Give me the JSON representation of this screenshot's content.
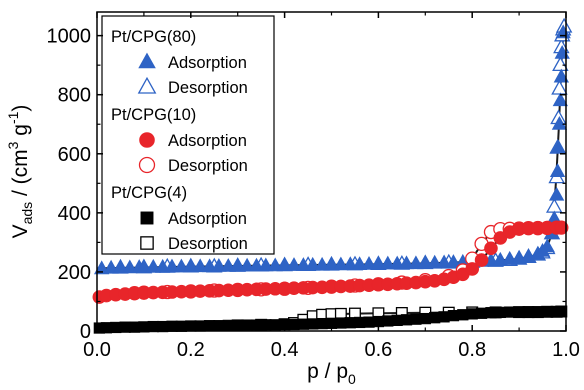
{
  "chart_data": {
    "type": "scatter",
    "xlabel": {
      "main": "p / p",
      "sub": "0"
    },
    "ylabel": {
      "pre": "V",
      "sub": "ads",
      "mid": " / (cm",
      "sup1": "3",
      "mid2": " g",
      "sup2": "-1",
      "post": ")"
    },
    "xlim": [
      0.0,
      1.0
    ],
    "ylim": [
      0,
      1080
    ],
    "xticks": [
      "0.0",
      "0.2",
      "0.4",
      "0.6",
      "0.8",
      "1.0"
    ],
    "yticks": [
      "0",
      "200",
      "400",
      "600",
      "800",
      "1000"
    ],
    "grid": false,
    "legend_position": "top-left",
    "groups": [
      {
        "title": "Pt/CPG(80)",
        "color": "#2e63c5",
        "marker": "triangle",
        "series": [
          {
            "name": "Adsorption",
            "filled": true,
            "x": [
              0.01,
              0.03,
              0.05,
              0.07,
              0.09,
              0.1,
              0.12,
              0.14,
              0.16,
              0.18,
              0.2,
              0.22,
              0.24,
              0.26,
              0.28,
              0.3,
              0.32,
              0.34,
              0.36,
              0.38,
              0.4,
              0.42,
              0.44,
              0.46,
              0.48,
              0.5,
              0.52,
              0.54,
              0.56,
              0.58,
              0.6,
              0.62,
              0.64,
              0.66,
              0.68,
              0.7,
              0.72,
              0.74,
              0.76,
              0.78,
              0.8,
              0.82,
              0.84,
              0.86,
              0.88,
              0.9,
              0.92,
              0.94,
              0.95,
              0.96,
              0.97,
              0.975,
              0.98,
              0.982,
              0.984,
              0.986,
              0.988,
              0.99,
              0.992,
              0.994
            ],
            "y": [
              211,
              213,
              214,
              214,
              215,
              215,
              216,
              216,
              217,
              217,
              218,
              218,
              218,
              219,
              219,
              220,
              220,
              220,
              221,
              221,
              222,
              222,
              222,
              223,
              223,
              224,
              224,
              225,
              225,
              226,
              226,
              227,
              227,
              228,
              228,
              229,
              230,
              231,
              232,
              233,
              234,
              236,
              238,
              240,
              243,
              247,
              252,
              260,
              270,
              285,
              330,
              380,
              460,
              540,
              620,
              700,
              780,
              860,
              940,
              1010
            ]
          },
          {
            "name": "Desorption",
            "filled": false,
            "x": [
              0.05,
              0.1,
              0.15,
              0.2,
              0.25,
              0.3,
              0.35,
              0.4,
              0.45,
              0.5,
              0.55,
              0.6,
              0.65,
              0.7,
              0.75,
              0.8,
              0.85,
              0.88,
              0.9,
              0.92,
              0.94,
              0.95,
              0.96,
              0.97,
              0.975,
              0.98,
              0.982,
              0.984,
              0.986,
              0.988,
              0.99,
              0.992,
              0.994,
              0.996
            ],
            "y": [
              214,
              215,
              217,
              218,
              218,
              220,
              221,
              222,
              223,
              224,
              225,
              226,
              227,
              229,
              231,
              234,
              237,
              240,
              244,
              250,
              258,
              265,
              280,
              330,
              420,
              520,
              620,
              720,
              820,
              900,
              960,
              1000,
              1020,
              1030
            ]
          }
        ]
      },
      {
        "title": "Pt/CPG(10)",
        "color": "#e8252a",
        "marker": "circle",
        "series": [
          {
            "name": "Adsorption",
            "filled": true,
            "x": [
              0.005,
              0.02,
              0.04,
              0.06,
              0.08,
              0.1,
              0.12,
              0.14,
              0.16,
              0.18,
              0.2,
              0.22,
              0.24,
              0.26,
              0.28,
              0.3,
              0.32,
              0.34,
              0.36,
              0.38,
              0.4,
              0.42,
              0.44,
              0.46,
              0.48,
              0.5,
              0.52,
              0.54,
              0.56,
              0.58,
              0.6,
              0.62,
              0.64,
              0.66,
              0.68,
              0.7,
              0.72,
              0.74,
              0.76,
              0.78,
              0.8,
              0.82,
              0.84,
              0.86,
              0.88,
              0.9,
              0.92,
              0.94,
              0.96,
              0.98,
              0.99
            ],
            "y": [
              115,
              120,
              123,
              125,
              127,
              129,
              130,
              131,
              132,
              133,
              134,
              135,
              136,
              137,
              138,
              139,
              140,
              141,
              142,
              143,
              144,
              145,
              146,
              147,
              148,
              150,
              151,
              152,
              154,
              155,
              157,
              158,
              160,
              162,
              164,
              167,
              170,
              175,
              182,
              192,
              210,
              240,
              280,
              315,
              335,
              345,
              348,
              350,
              350,
              350,
              350
            ]
          },
          {
            "name": "Desorption",
            "filled": false,
            "x": [
              0.08,
              0.1,
              0.15,
              0.2,
              0.25,
              0.3,
              0.35,
              0.4,
              0.45,
              0.5,
              0.55,
              0.6,
              0.65,
              0.7,
              0.75,
              0.78,
              0.8,
              0.82,
              0.84,
              0.86,
              0.88,
              0.9,
              0.92,
              0.94,
              0.96,
              0.98,
              0.99
            ],
            "y": [
              128,
              130,
              132,
              134,
              137,
              139,
              141,
              143,
              146,
              150,
              154,
              158,
              164,
              172,
              186,
              205,
              245,
              295,
              335,
              345,
              346,
              347,
              348,
              348,
              349,
              350,
              350
            ]
          }
        ]
      },
      {
        "title": "Pt/CPG(4)",
        "color": "#000000",
        "marker": "square",
        "series": [
          {
            "name": "Adsorption",
            "filled": true,
            "x": [
              0.005,
              0.02,
              0.04,
              0.06,
              0.08,
              0.1,
              0.12,
              0.14,
              0.16,
              0.18,
              0.2,
              0.22,
              0.24,
              0.26,
              0.28,
              0.3,
              0.32,
              0.34,
              0.36,
              0.38,
              0.4,
              0.42,
              0.44,
              0.46,
              0.48,
              0.5,
              0.52,
              0.54,
              0.56,
              0.58,
              0.6,
              0.62,
              0.64,
              0.66,
              0.68,
              0.7,
              0.72,
              0.74,
              0.76,
              0.78,
              0.8,
              0.82,
              0.84,
              0.86,
              0.88,
              0.9,
              0.92,
              0.94,
              0.96,
              0.97,
              0.98,
              0.99
            ],
            "y": [
              10,
              11,
              12,
              13,
              13,
              14,
              15,
              15,
              16,
              16,
              17,
              17,
              18,
              18,
              19,
              19,
              20,
              20,
              21,
              21,
              22,
              22,
              23,
              24,
              25,
              26,
              27,
              28,
              29,
              30,
              32,
              34,
              36,
              38,
              40,
              42,
              45,
              48,
              52,
              55,
              58,
              60,
              62,
              63,
              64,
              64,
              65,
              65,
              65,
              65,
              65,
              66
            ]
          },
          {
            "name": "Desorption",
            "filled": false,
            "x": [
              0.3,
              0.35,
              0.4,
              0.42,
              0.44,
              0.46,
              0.48,
              0.5,
              0.52,
              0.55,
              0.6,
              0.65,
              0.7,
              0.75,
              0.8,
              0.85,
              0.9,
              0.92,
              0.94,
              0.96,
              0.98,
              0.99
            ],
            "y": [
              19,
              21,
              23,
              27,
              38,
              50,
              55,
              57,
              58,
              59,
              60,
              61,
              62,
              62,
              63,
              63,
              64,
              64,
              64,
              65,
              65,
              66
            ]
          }
        ]
      }
    ],
    "fit_lines": [
      {
        "color": "#1a1a1a",
        "x": [
          0.0,
          0.1,
          0.2,
          0.3,
          0.4,
          0.5,
          0.6,
          0.7,
          0.8,
          0.85,
          0.9,
          0.93,
          0.95,
          0.96,
          0.97,
          0.975,
          0.98,
          0.985,
          0.99,
          0.995
        ],
        "y": [
          212,
          215,
          218,
          220,
          222,
          224,
          226,
          229,
          234,
          238,
          244,
          255,
          268,
          285,
          330,
          420,
          540,
          700,
          900,
          1030
        ]
      },
      {
        "color": "#1a1a1a",
        "x": [
          0.0,
          0.05,
          0.1,
          0.2,
          0.3,
          0.4,
          0.5,
          0.6,
          0.65,
          0.7,
          0.75,
          0.78,
          0.8,
          0.82,
          0.84,
          0.86,
          0.88,
          0.9,
          0.94,
          0.98,
          1.0
        ],
        "y": [
          113,
          122,
          128,
          134,
          139,
          144,
          150,
          157,
          162,
          167,
          180,
          190,
          210,
          240,
          280,
          315,
          335,
          345,
          348,
          350,
          350
        ]
      },
      {
        "color": "#1a1a1a",
        "x": [
          0.1,
          0.2,
          0.3,
          0.4,
          0.5,
          0.6,
          0.65,
          0.7,
          0.75,
          0.78,
          0.8,
          0.82,
          0.84,
          0.86,
          0.9,
          0.94,
          1.0
        ],
        "y": [
          130,
          134,
          139,
          144,
          150,
          157,
          162,
          170,
          185,
          205,
          245,
          295,
          335,
          345,
          347,
          349,
          350
        ]
      },
      {
        "color": "#1a1a1a",
        "x": [
          0.0,
          0.1,
          0.2,
          0.3,
          0.4,
          0.5,
          0.6,
          0.7,
          0.75,
          0.8,
          0.85,
          0.9,
          0.95,
          1.0
        ],
        "y": [
          9,
          14,
          17,
          19,
          22,
          26,
          32,
          42,
          50,
          58,
          62,
          64,
          65,
          66
        ]
      },
      {
        "color": "#1a1a1a",
        "x": [
          0.3,
          0.4,
          0.42,
          0.44,
          0.46,
          0.48,
          0.5,
          0.55,
          0.6,
          0.7,
          0.8,
          0.9,
          1.0
        ],
        "y": [
          19,
          23,
          27,
          38,
          50,
          55,
          57,
          59,
          60,
          62,
          63,
          64,
          66
        ]
      }
    ]
  }
}
